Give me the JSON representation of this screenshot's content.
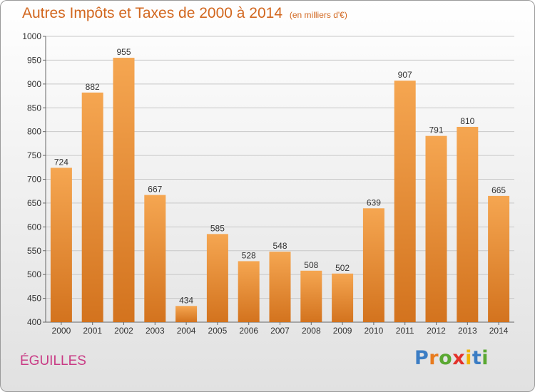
{
  "header": {
    "title": "Autres Impôts et Taxes de 2000 à 2014",
    "subtitle": "(en milliers d'€)"
  },
  "location": "ÉGUILLES",
  "logo": {
    "text": "Proxiti",
    "letters": [
      {
        "ch": "P",
        "color": "#3b7dc4"
      },
      {
        "ch": "r",
        "color": "#e87b1e"
      },
      {
        "ch": "o",
        "color": "#5aa832"
      },
      {
        "ch": "x",
        "color": "#e3322b"
      },
      {
        "ch": "i",
        "color": "#f0b400"
      },
      {
        "ch": "t",
        "color": "#3b7dc4"
      },
      {
        "ch": "i",
        "color": "#5aa832"
      }
    ]
  },
  "colors": {
    "bar_top": "#f5a651",
    "bar_bottom": "#d3731e",
    "accent": "#d2671f"
  },
  "chart_data": {
    "type": "bar",
    "title": "Autres Impôts et Taxes de 2000 à 2014",
    "subtitle": "(en milliers d'€)",
    "categories": [
      "2000",
      "2001",
      "2002",
      "2003",
      "2004",
      "2005",
      "2006",
      "2007",
      "2008",
      "2009",
      "2010",
      "2011",
      "2012",
      "2013",
      "2014"
    ],
    "values": [
      724,
      882,
      955,
      667,
      434,
      585,
      528,
      548,
      508,
      502,
      639,
      907,
      791,
      810,
      665
    ],
    "ylim": [
      400,
      1000
    ],
    "yticks": [
      400,
      450,
      500,
      550,
      600,
      650,
      700,
      750,
      800,
      850,
      900,
      950,
      1000
    ],
    "grid": true,
    "data_labels": true
  }
}
